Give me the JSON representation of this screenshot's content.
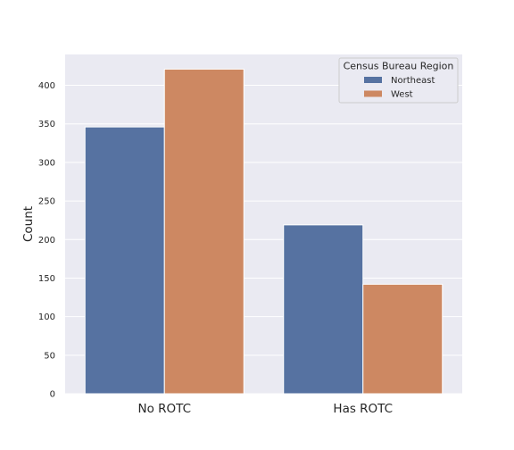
{
  "chart_data": {
    "type": "bar",
    "title": "",
    "xlabel": "",
    "ylabel": "Count",
    "categories": [
      "No ROTC",
      "Has ROTC"
    ],
    "series": [
      {
        "name": "Northeast",
        "values": [
          346,
          219
        ],
        "color": "#5672a1"
      },
      {
        "name": "West",
        "values": [
          421,
          142
        ],
        "color": "#cd8862"
      }
    ],
    "ylim": [
      0,
      440
    ],
    "yticks": [
      0,
      50,
      100,
      150,
      200,
      250,
      300,
      350,
      400
    ],
    "grid": true,
    "background": "#eaeaf2",
    "legend": {
      "title": "Census Bureau Region",
      "placement": "top-right"
    }
  }
}
